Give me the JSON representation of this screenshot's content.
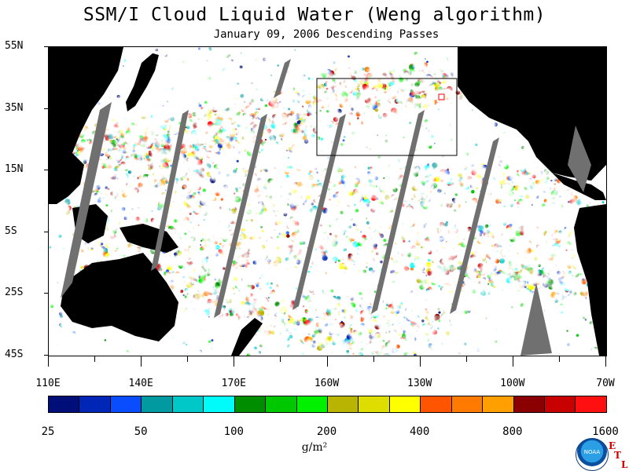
{
  "title": "SSM/I Cloud Liquid Water (Weng algorithm)",
  "subtitle": "January 09, 2006  Descending Passes",
  "lat_labels": [
    "55N",
    "35N",
    "15N",
    "5S",
    "25S",
    "45S"
  ],
  "lon_labels": [
    "110E",
    "140E",
    "170E",
    "160W",
    "130W",
    "100W",
    "70W"
  ],
  "legend": {
    "tick_labels": [
      "25",
      "50",
      "100",
      "200",
      "400",
      "800",
      "1600"
    ],
    "units": "g/m²",
    "colors": [
      "#000e7a",
      "#0026b8",
      "#0a4cff",
      "#009aa0",
      "#00c8c8",
      "#00fbfb",
      "#008d00",
      "#00c800",
      "#00f000",
      "#b9b400",
      "#dddd00",
      "#ffff00",
      "#ff5500",
      "#ff7a00",
      "#ffa000",
      "#8b0000",
      "#c80000",
      "#ff1010"
    ]
  },
  "logo": {
    "text": "NOAA",
    "mark": [
      "E",
      "T",
      "L"
    ]
  },
  "map_colors": {
    "land": "#000000",
    "ocean_clear": "#ffffff",
    "no_data_swath_gap": "#707070",
    "box": "#000000",
    "marker": "#ff0000"
  }
}
